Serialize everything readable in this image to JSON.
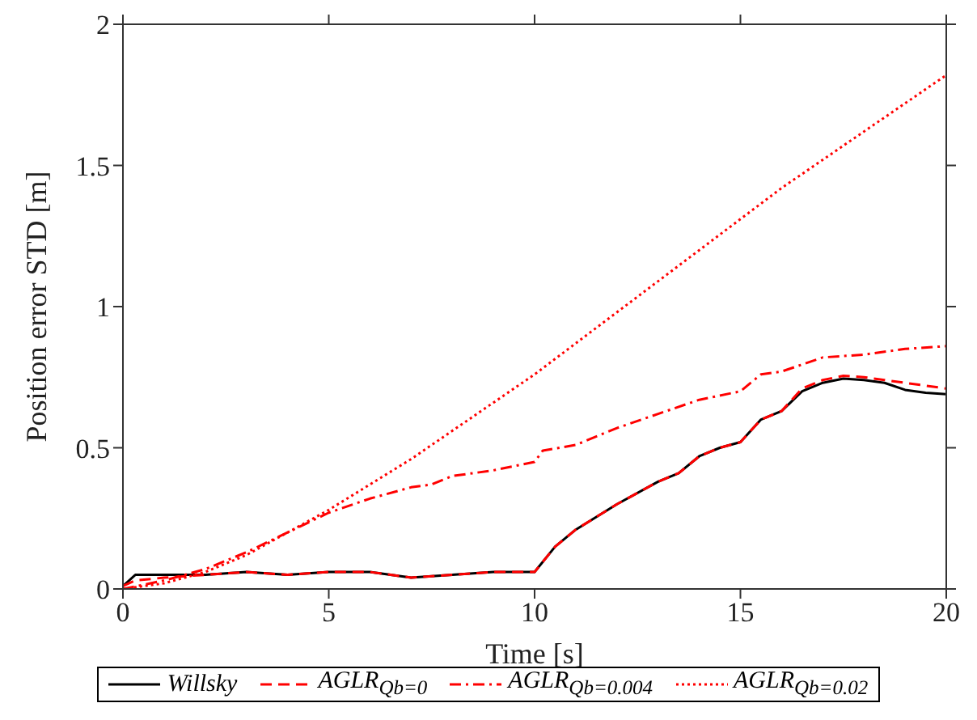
{
  "chart_data": {
    "type": "line",
    "xlabel": "Time [s]",
    "ylabel": "Position error STD [m]",
    "xlim": [
      0,
      20
    ],
    "ylim": [
      0,
      2
    ],
    "xticks": [
      0,
      5,
      10,
      15,
      20
    ],
    "yticks": [
      0,
      0.5,
      1,
      1.5,
      2
    ],
    "legend": "bottom",
    "series": [
      {
        "name": "Willsky",
        "color": "#000000",
        "line_style": "solid",
        "x": [
          0,
          0.3,
          1,
          2,
          3,
          4,
          5,
          6,
          7,
          8,
          9,
          10,
          10.5,
          11,
          12,
          13,
          13.5,
          14,
          14.5,
          15,
          15.5,
          16,
          16.5,
          17,
          17.5,
          18,
          18.5,
          19,
          19.5,
          20
        ],
        "values": [
          0.01,
          0.05,
          0.05,
          0.05,
          0.06,
          0.05,
          0.06,
          0.06,
          0.04,
          0.05,
          0.06,
          0.06,
          0.15,
          0.21,
          0.3,
          0.38,
          0.41,
          0.47,
          0.5,
          0.52,
          0.6,
          0.63,
          0.7,
          0.73,
          0.745,
          0.74,
          0.73,
          0.705,
          0.695,
          0.69
        ]
      },
      {
        "name": "AGLR$_{Qb=0}$",
        "color": "#ff0000",
        "line_style": "dashed",
        "x": [
          0,
          0.3,
          1,
          2,
          3,
          4,
          5,
          6,
          7,
          8,
          9,
          10,
          10.5,
          11,
          12,
          13,
          13.5,
          14,
          14.5,
          15,
          15.5,
          16,
          16.5,
          17,
          17.5,
          18,
          18.5,
          19,
          19.5,
          20
        ],
        "values": [
          0.01,
          0.03,
          0.04,
          0.05,
          0.06,
          0.05,
          0.06,
          0.06,
          0.04,
          0.05,
          0.06,
          0.06,
          0.15,
          0.21,
          0.3,
          0.38,
          0.41,
          0.47,
          0.5,
          0.52,
          0.6,
          0.63,
          0.71,
          0.74,
          0.755,
          0.75,
          0.74,
          0.73,
          0.72,
          0.71
        ]
      },
      {
        "name": "AGLR$_{Qb=0.004}$",
        "color": "#ff0000",
        "line_style": "dashdot",
        "x": [
          0,
          1,
          2,
          2.5,
          3,
          4,
          5,
          6,
          7,
          7.5,
          8,
          9,
          10,
          10.2,
          11,
          12,
          13,
          14,
          15,
          15.5,
          16,
          17,
          18,
          19,
          20
        ],
        "values": [
          0,
          0.03,
          0.07,
          0.1,
          0.13,
          0.2,
          0.27,
          0.32,
          0.36,
          0.37,
          0.4,
          0.42,
          0.45,
          0.49,
          0.51,
          0.57,
          0.62,
          0.67,
          0.7,
          0.76,
          0.77,
          0.82,
          0.83,
          0.85,
          0.86
        ]
      },
      {
        "name": "AGLR$_{Qb=0.02}$",
        "color": "#ff0000",
        "line_style": "dotted",
        "x": [
          0,
          1,
          2,
          2.5,
          3,
          4,
          5,
          6,
          7,
          7.5,
          8,
          9,
          10,
          11,
          12,
          13,
          14,
          15,
          16,
          17,
          18,
          19,
          20
        ],
        "values": [
          0,
          0.02,
          0.06,
          0.09,
          0.12,
          0.2,
          0.28,
          0.37,
          0.46,
          0.51,
          0.56,
          0.66,
          0.76,
          0.87,
          0.98,
          1.09,
          1.2,
          1.31,
          1.42,
          1.52,
          1.62,
          1.72,
          1.82
        ]
      }
    ]
  }
}
